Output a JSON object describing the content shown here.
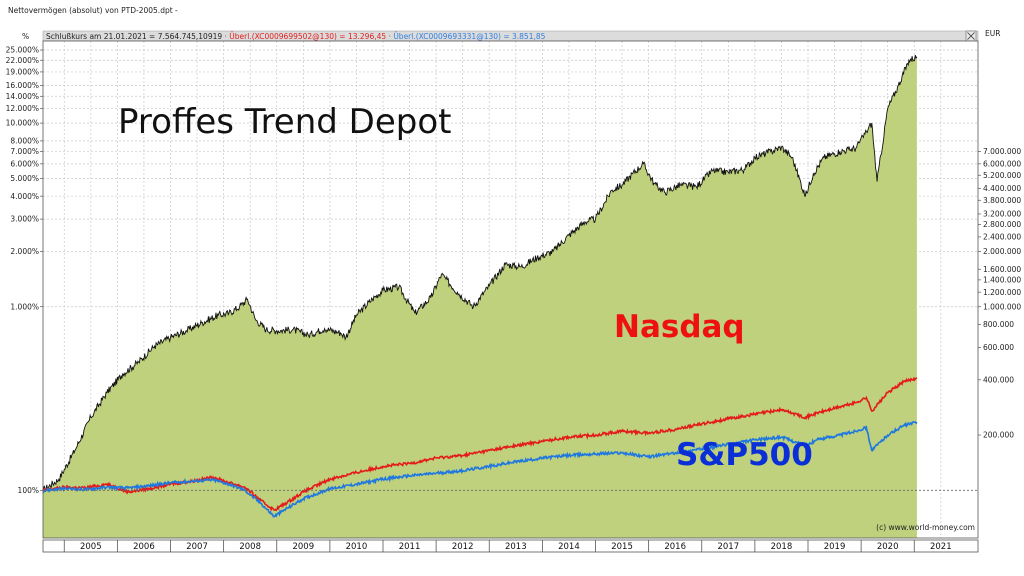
{
  "window": {
    "file_title": "Nettovermögen (absolut) von PTD-2005.dpt -",
    "close_icon": "close-icon"
  },
  "info_bar": {
    "close_text": "Schlußkurs am 21.01.2021 = 7.564.745,10919",
    "nasdaq_text": "Überl.(XC0009699502@130) = 13.296,45",
    "sp500_text": "Überl.(XC0009693331@130) = 3.851,85",
    "separator": " · "
  },
  "colors": {
    "depot_fill": "#bfd17d",
    "depot_line": "#111111",
    "nasdaq": "#e31b1b",
    "sp500": "#1f78e0",
    "nasdaq_label": "#ee1111",
    "sp500_label": "#0b2fd6",
    "info_red": "#e02020",
    "info_blue": "#2f7fe0"
  },
  "copyright": "(c) www.world-money.com",
  "chart_data": {
    "type": "line",
    "title": "Proffes Trend Depot",
    "y_scale": "log",
    "left_axis_unit": "%",
    "right_axis_unit": "EUR",
    "left_ticks": [
      {
        "value": 25000,
        "label": "25.000%"
      },
      {
        "value": 22000,
        "label": "22.000%"
      },
      {
        "value": 19000,
        "label": "19.000%"
      },
      {
        "value": 16000,
        "label": "16.000%"
      },
      {
        "value": 14000,
        "label": "14.000%"
      },
      {
        "value": 12000,
        "label": "12.000%"
      },
      {
        "value": 10000,
        "label": "10.000%"
      },
      {
        "value": 8000,
        "label": "8.000%"
      },
      {
        "value": 7000,
        "label": "7.000%"
      },
      {
        "value": 6000,
        "label": "6.000%"
      },
      {
        "value": 5000,
        "label": "5.000%"
      },
      {
        "value": 4000,
        "label": "4.000%"
      },
      {
        "value": 3000,
        "label": "3.000%"
      },
      {
        "value": 2000,
        "label": "2.000%"
      },
      {
        "value": 1000,
        "label": "1.000%"
      },
      {
        "value": 100,
        "label": "100%"
      }
    ],
    "right_ticks": [
      {
        "value": 7000000,
        "label": "7.000.000"
      },
      {
        "value": 6000000,
        "label": "6.000.000"
      },
      {
        "value": 5200000,
        "label": "5.200.000"
      },
      {
        "value": 4400000,
        "label": "4.400.000"
      },
      {
        "value": 3800000,
        "label": "3.800.000"
      },
      {
        "value": 3200000,
        "label": "3.200.000"
      },
      {
        "value": 2800000,
        "label": "2.800.000"
      },
      {
        "value": 2400000,
        "label": "2.400.000"
      },
      {
        "value": 2000000,
        "label": "2.000.000"
      },
      {
        "value": 1600000,
        "label": "1.600.000"
      },
      {
        "value": 1400000,
        "label": "1.400.000"
      },
      {
        "value": 1200000,
        "label": "1.200.000"
      },
      {
        "value": 1000000,
        "label": "1.000.000"
      },
      {
        "value": 800000,
        "label": "800.000"
      },
      {
        "value": 600000,
        "label": "600.000"
      },
      {
        "value": 400000,
        "label": "400.000"
      },
      {
        "value": 200000,
        "label": "200.000"
      }
    ],
    "x_ticks": [
      "2005",
      "2006",
      "2007",
      "2008",
      "2009",
      "2010",
      "2011",
      "2012",
      "2013",
      "2014",
      "2015",
      "2016",
      "2017",
      "2018",
      "2019",
      "2020",
      "2021"
    ],
    "x_range": [
      2004.6,
      2022.2
    ],
    "y_range_percent": [
      55,
      28000
    ],
    "reference_line_percent": 100,
    "series": [
      {
        "name": "Proffes Trend Depot",
        "style": "area",
        "x": [
          2004.6,
          2004.9,
          2005.2,
          2005.5,
          2005.8,
          2006.1,
          2006.4,
          2006.7,
          2007.0,
          2007.3,
          2007.6,
          2007.9,
          2008.1,
          2008.3,
          2008.45,
          2008.6,
          2008.8,
          2009.0,
          2009.3,
          2009.6,
          2009.9,
          2010.2,
          2010.3,
          2010.5,
          2010.8,
          2011.0,
          2011.3,
          2011.6,
          2011.9,
          2012.1,
          2012.4,
          2012.7,
          2013.0,
          2013.3,
          2013.6,
          2013.9,
          2014.2,
          2014.5,
          2014.8,
          2015.0,
          2015.3,
          2015.5,
          2015.7,
          2015.9,
          2016.1,
          2016.3,
          2016.6,
          2016.9,
          2017.2,
          2017.5,
          2017.8,
          2018.0,
          2018.3,
          2018.5,
          2018.7,
          2018.95,
          2019.1,
          2019.3,
          2019.6,
          2019.9,
          2020.1,
          2020.2,
          2020.3,
          2020.5,
          2020.7,
          2020.9,
          2021.05
        ],
        "values": [
          100,
          115,
          165,
          250,
          340,
          430,
          500,
          610,
          680,
          740,
          820,
          900,
          920,
          1000,
          1100,
          850,
          750,
          740,
          750,
          700,
          760,
          720,
          680,
          900,
          1100,
          1230,
          1280,
          920,
          1120,
          1500,
          1200,
          1000,
          1300,
          1700,
          1650,
          1850,
          2000,
          2450,
          2900,
          3000,
          4300,
          4600,
          5300,
          6000,
          4700,
          4200,
          4600,
          4500,
          5500,
          5400,
          5600,
          6500,
          7000,
          7400,
          6500,
          4000,
          5300,
          6500,
          7000,
          7300,
          9000,
          10000,
          4800,
          12000,
          16000,
          22000,
          23000
        ]
      },
      {
        "name": "Nasdaq",
        "style": "line",
        "x": [
          2004.6,
          2005.0,
          2005.4,
          2005.8,
          2006.2,
          2006.6,
          2007.0,
          2007.4,
          2007.8,
          2008.1,
          2008.4,
          2008.7,
          2008.95,
          2009.2,
          2009.5,
          2010.0,
          2010.5,
          2011.0,
          2011.5,
          2012.0,
          2012.5,
          2013.0,
          2013.5,
          2014.0,
          2014.5,
          2015.0,
          2015.5,
          2016.0,
          2016.5,
          2017.0,
          2017.5,
          2018.0,
          2018.5,
          2018.95,
          2019.2,
          2019.6,
          2019.9,
          2020.1,
          2020.2,
          2020.5,
          2020.8,
          2021.05
        ],
        "values": [
          100,
          104,
          103,
          108,
          98,
          102,
          108,
          112,
          118,
          110,
          104,
          88,
          78,
          86,
          98,
          115,
          125,
          135,
          140,
          150,
          155,
          165,
          175,
          185,
          195,
          200,
          210,
          205,
          215,
          230,
          245,
          260,
          275,
          250,
          265,
          285,
          300,
          320,
          270,
          340,
          390,
          410
        ]
      },
      {
        "name": "S&P500",
        "style": "line",
        "x": [
          2004.6,
          2005.0,
          2005.4,
          2005.8,
          2006.2,
          2006.6,
          2007.0,
          2007.4,
          2007.8,
          2008.1,
          2008.4,
          2008.7,
          2008.95,
          2009.2,
          2009.5,
          2010.0,
          2010.5,
          2011.0,
          2011.5,
          2012.0,
          2012.5,
          2013.0,
          2013.5,
          2014.0,
          2014.5,
          2015.0,
          2015.5,
          2016.0,
          2016.5,
          2017.0,
          2017.5,
          2018.0,
          2018.5,
          2018.95,
          2019.2,
          2019.6,
          2019.9,
          2020.1,
          2020.2,
          2020.5,
          2020.8,
          2021.05
        ],
        "values": [
          100,
          102,
          101,
          104,
          103,
          106,
          110,
          112,
          114,
          108,
          100,
          85,
          72,
          80,
          90,
          102,
          108,
          115,
          120,
          124,
          128,
          135,
          143,
          150,
          155,
          158,
          160,
          152,
          160,
          168,
          178,
          188,
          195,
          175,
          190,
          200,
          210,
          220,
          165,
          200,
          225,
          235
        ]
      }
    ],
    "series_labels": [
      {
        "series": "Nasdaq",
        "text": "Nasdaq"
      },
      {
        "series": "S&P500",
        "text": "S&P500"
      }
    ]
  }
}
